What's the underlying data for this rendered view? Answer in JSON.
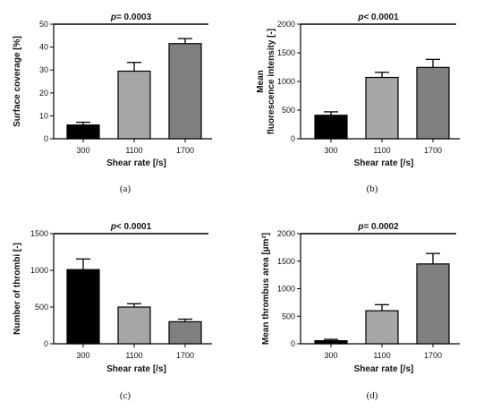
{
  "chart_data": [
    {
      "type": "bar",
      "panel_label": "(a)",
      "categories": [
        "300",
        "1100",
        "1700"
      ],
      "values": [
        6,
        29.5,
        41.5
      ],
      "errors": [
        1.2,
        3.8,
        2.2
      ],
      "colors": [
        "#000000",
        "#a6a6a6",
        "#808080"
      ],
      "ylim": [
        0,
        50
      ],
      "yticks": [
        "0",
        "10",
        "20",
        "30",
        "40",
        "50"
      ],
      "xlabel": "Shear rate [/s]",
      "ylabel": [
        "Surface coverage [%]"
      ],
      "p_prefix": "p",
      "p_value": "= 0.0003"
    },
    {
      "type": "bar",
      "panel_label": "(b)",
      "categories": [
        "300",
        "1100",
        "1700"
      ],
      "values": [
        410,
        1070,
        1245
      ],
      "errors": [
        60,
        90,
        140
      ],
      "colors": [
        "#000000",
        "#a6a6a6",
        "#808080"
      ],
      "ylim": [
        0,
        2000
      ],
      "yticks": [
        "0",
        "500",
        "1000",
        "1500",
        "2000"
      ],
      "xlabel": "Shear rate [/s]",
      "ylabel": [
        "Mean",
        "fluorescence intensity [-]"
      ],
      "p_prefix": "p",
      "p_value": "< 0.0001"
    },
    {
      "type": "bar",
      "panel_label": "(c)",
      "categories": [
        "300",
        "1100",
        "1700"
      ],
      "values": [
        1010,
        500,
        300
      ],
      "errors": [
        145,
        45,
        35
      ],
      "colors": [
        "#000000",
        "#a6a6a6",
        "#808080"
      ],
      "ylim": [
        0,
        1500
      ],
      "yticks": [
        "0",
        "500",
        "1000",
        "1500"
      ],
      "xlabel": "Shear rate [/s]",
      "ylabel": [
        "Number of thrombi [-]"
      ],
      "p_prefix": "p",
      "p_value": "< 0.0001"
    },
    {
      "type": "bar",
      "panel_label": "(d)",
      "categories": [
        "300",
        "1100",
        "1700"
      ],
      "values": [
        55,
        600,
        1450
      ],
      "errors": [
        25,
        110,
        190
      ],
      "colors": [
        "#000000",
        "#a6a6a6",
        "#808080"
      ],
      "ylim": [
        0,
        2000
      ],
      "yticks": [
        "0",
        "500",
        "1000",
        "1500",
        "2000"
      ],
      "xlabel": "Shear rate [/s]",
      "ylabel": [
        "Mean thrombus area [µm²]"
      ],
      "p_prefix": "p",
      "p_value": "= 0.0002"
    }
  ]
}
